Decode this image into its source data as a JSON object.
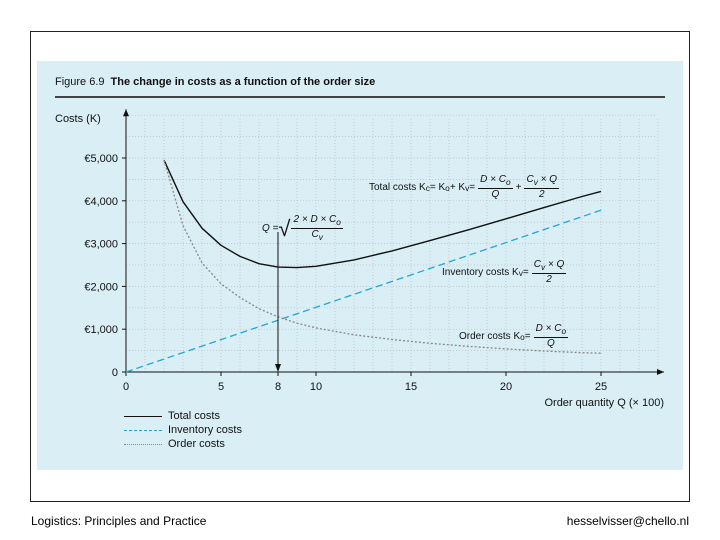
{
  "figure": {
    "label": "Figure 6.9",
    "title": "The change in costs as a function of the order size"
  },
  "footer": {
    "left": "Logistics: Principles and Practice",
    "right": "hesselvisser@chello.nl"
  },
  "annotations": {
    "total": {
      "prefix": "Total costs K",
      "sub": "c",
      "eq1": " = K",
      "sub1": "o",
      "plus1": " + K",
      "sub2": "v",
      "eq2": " =",
      "frac1_num": "D × C",
      "frac1_num_sub": "o",
      "frac1_den": "Q",
      "plus2": "+",
      "frac2_num": "C",
      "frac2_num_sub": "v",
      "frac2_num_tail": " × Q",
      "frac2_den": "2"
    },
    "inventory": {
      "prefix": "Inventory costs K",
      "sub": "v",
      "eq": " =",
      "num": "C",
      "num_sub": "v",
      "num_tail": " × Q",
      "den": "2"
    },
    "order": {
      "prefix": "Order costs K",
      "sub": "o",
      "eq": " =",
      "num": "D × C",
      "num_sub": "o",
      "den": "Q"
    },
    "optimum": {
      "lhs": "Q =",
      "num": "2 × D × C",
      "num_sub": "o",
      "den": "C",
      "den_sub": "v"
    }
  },
  "chart_data": {
    "type": "line",
    "ylabel": "Costs (K)",
    "xlabel": "Order quantity Q (× 100)",
    "x_ticks": [
      0,
      5,
      8,
      10,
      15,
      20,
      25
    ],
    "y_ticks": [
      0,
      1000,
      2000,
      3000,
      4000,
      5000
    ],
    "y_tick_labels": [
      "0",
      "€1,000",
      "€2,000",
      "€3,000",
      "€4,000",
      "€5,000"
    ],
    "xlim": [
      0,
      28
    ],
    "ylim": [
      0,
      6000
    ],
    "grid": true,
    "legend_placement": "bottom-left",
    "series": [
      {
        "name": "Total costs",
        "color": "#111111",
        "style": "solid",
        "x": [
          2,
          3,
          4,
          5,
          6,
          7,
          8,
          9,
          10,
          12,
          14,
          16,
          18,
          20,
          22,
          24,
          25
        ],
        "y": [
          4950,
          3980,
          3360,
          2960,
          2700,
          2530,
          2450,
          2440,
          2470,
          2620,
          2830,
          3070,
          3320,
          3580,
          3840,
          4100,
          4220
        ]
      },
      {
        "name": "Inventory costs",
        "color": "#22a6d4",
        "style": "dashed",
        "x": [
          0,
          25
        ],
        "y": [
          0,
          3780
        ]
      },
      {
        "name": "Order costs",
        "color": "#888888",
        "style": "dotted",
        "x": [
          2,
          3,
          4,
          5,
          6,
          7,
          8,
          9,
          10,
          12,
          14,
          16,
          18,
          20,
          22,
          24,
          25
        ],
        "y": [
          4950,
          3420,
          2550,
          2060,
          1740,
          1480,
          1290,
          1140,
          1030,
          870,
          760,
          670,
          600,
          540,
          490,
          450,
          440
        ]
      }
    ],
    "optimum_x": 8
  }
}
